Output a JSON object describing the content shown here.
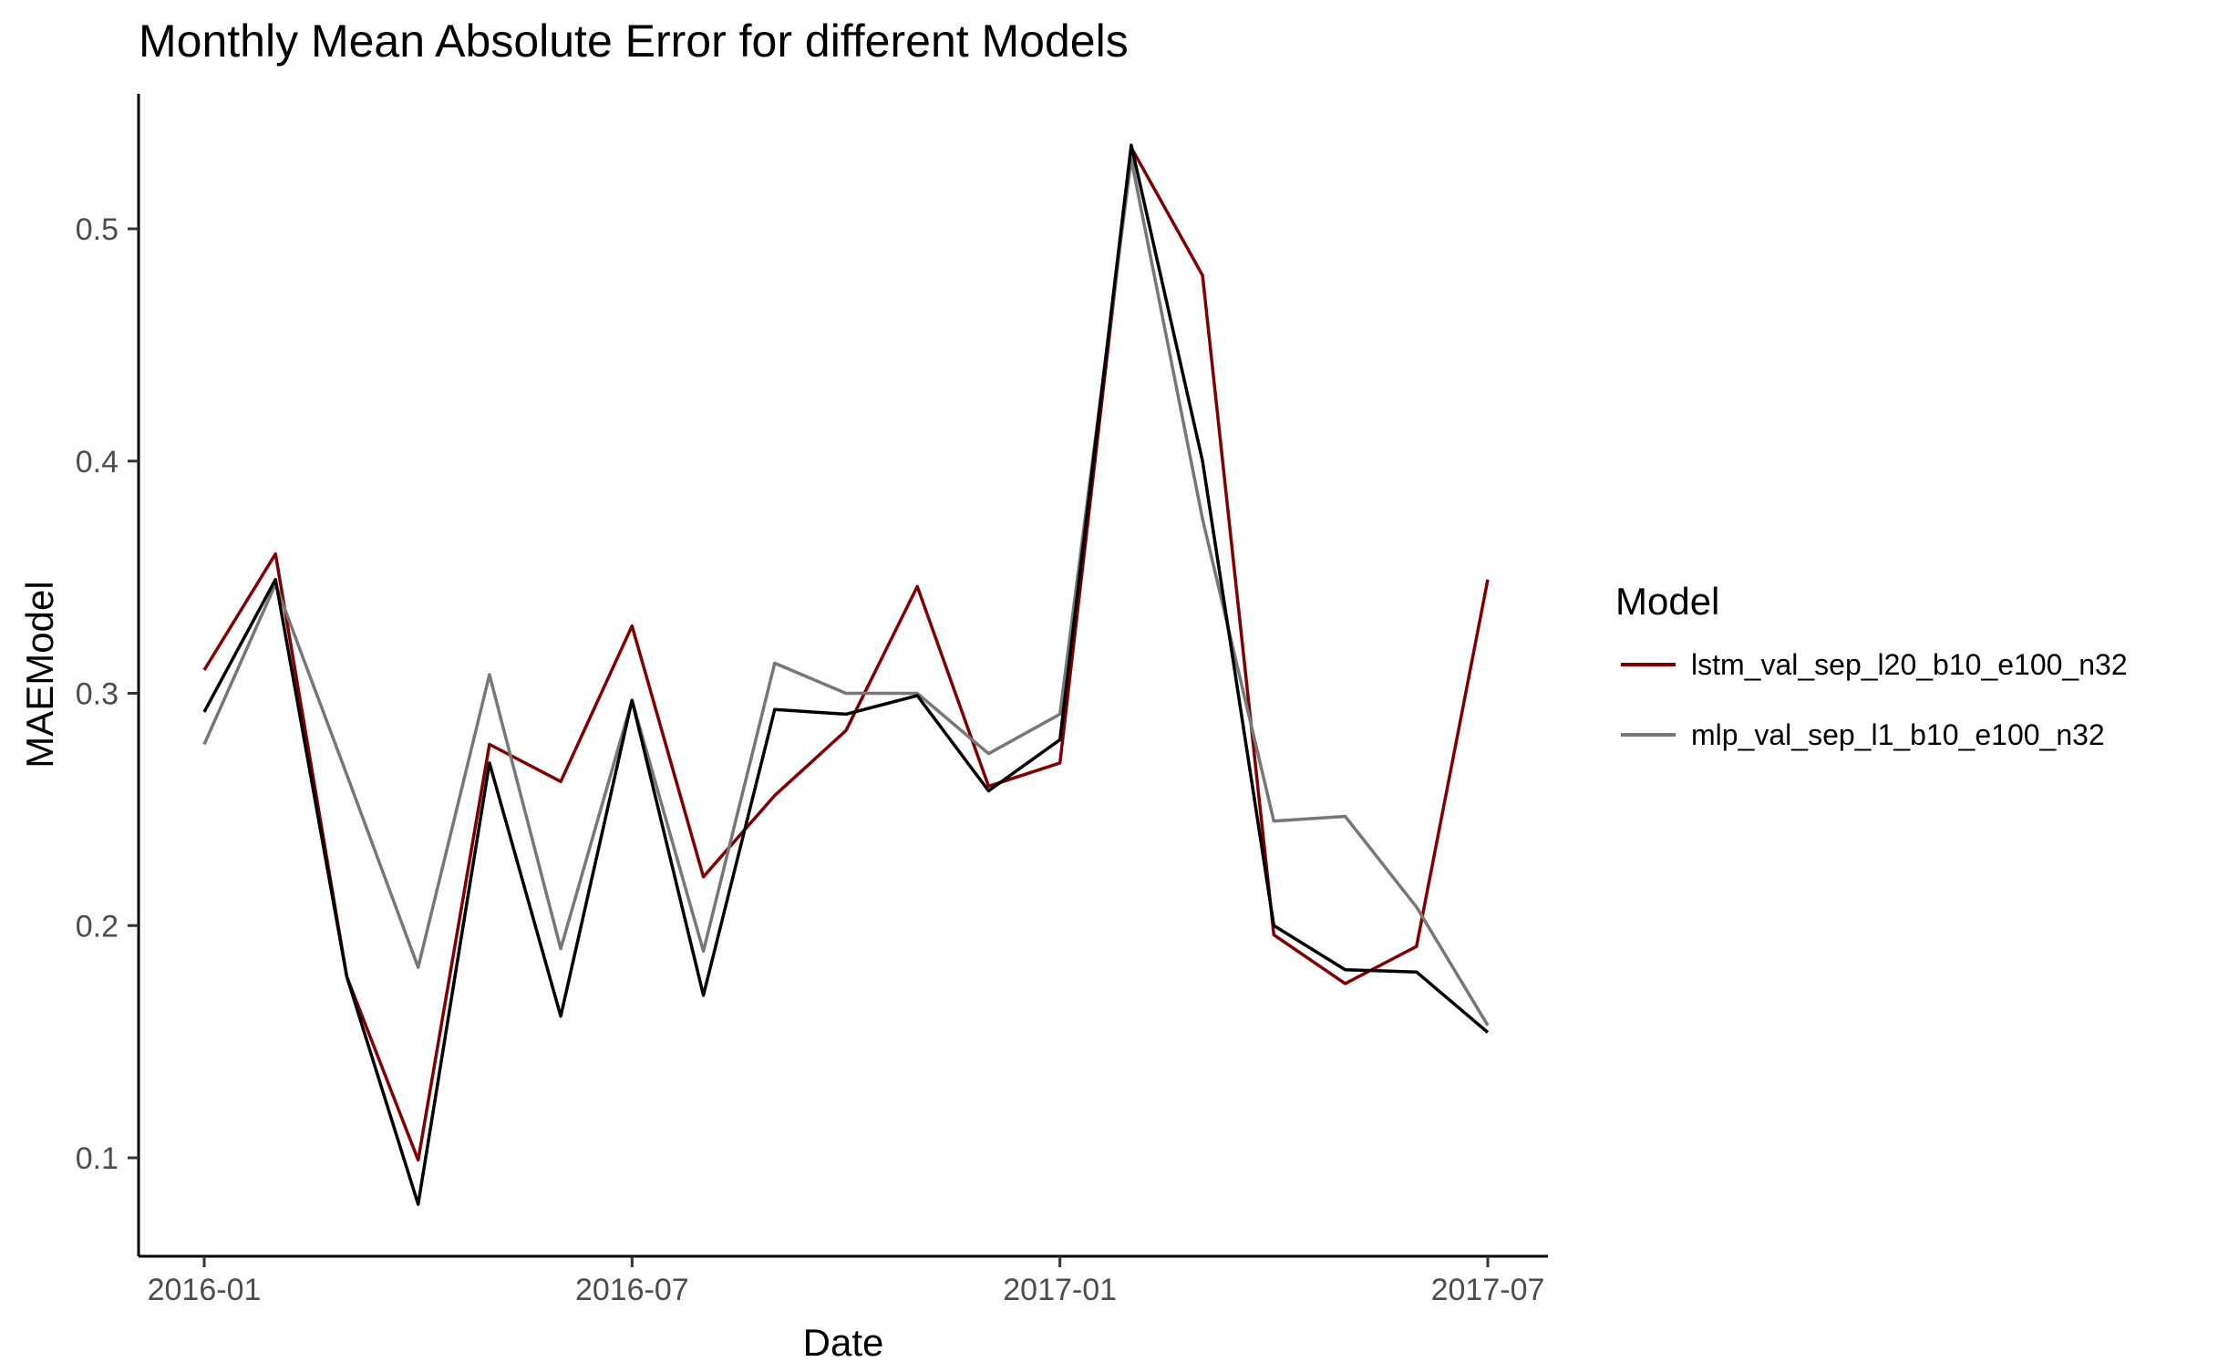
{
  "chart_data": {
    "type": "line",
    "title": "Monthly Mean Absolute Error for different Models",
    "xlabel": "Date",
    "ylabel": "MAEModel",
    "x": [
      "2016-01",
      "2016-02",
      "2016-03",
      "2016-04",
      "2016-05",
      "2016-06",
      "2016-07",
      "2016-08",
      "2016-09",
      "2016-10",
      "2016-11",
      "2016-12",
      "2017-01",
      "2017-02",
      "2017-03",
      "2017-04",
      "2017-05",
      "2017-06",
      "2017-07"
    ],
    "x_ticks": [
      "2016-01",
      "2016-07",
      "2017-01",
      "2017-07"
    ],
    "y_ticks": [
      0.1,
      0.2,
      0.3,
      0.4,
      0.5
    ],
    "ylim": [
      0.06,
      0.555
    ],
    "grid": false,
    "legend": {
      "title": "Model",
      "position": "right",
      "entries": [
        {
          "label": "lstm_val_sep_l20_b10_e100_n32",
          "color": "#800000"
        },
        {
          "label": "mlp_val_sep_l1_b10_e100_n32",
          "color": "#777777"
        }
      ]
    },
    "series": [
      {
        "name": "lstm_val_sep_l20_b10_e100_n32",
        "color": "#800000",
        "values": [
          0.31,
          0.36,
          0.178,
          0.099,
          0.278,
          0.262,
          0.329,
          0.221,
          0.256,
          0.284,
          0.346,
          0.26,
          0.27,
          0.535,
          0.48,
          0.196,
          0.175,
          0.191,
          0.349
        ]
      },
      {
        "name": "mlp_val_sep_l1_b10_e100_n32",
        "color": "#777777",
        "values": [
          0.278,
          0.347,
          0.265,
          0.182,
          0.308,
          0.19,
          0.297,
          0.189,
          0.313,
          0.3,
          0.3,
          0.274,
          0.291,
          0.53,
          0.375,
          0.245,
          0.247,
          0.208,
          0.157
        ]
      },
      {
        "color": "#000000",
        "values": [
          0.292,
          0.349,
          0.178,
          0.08,
          0.27,
          0.161,
          0.297,
          0.17,
          0.293,
          0.291,
          0.299,
          0.258,
          0.28,
          0.536,
          0.4,
          0.2,
          0.181,
          0.18,
          0.154
        ]
      }
    ]
  }
}
